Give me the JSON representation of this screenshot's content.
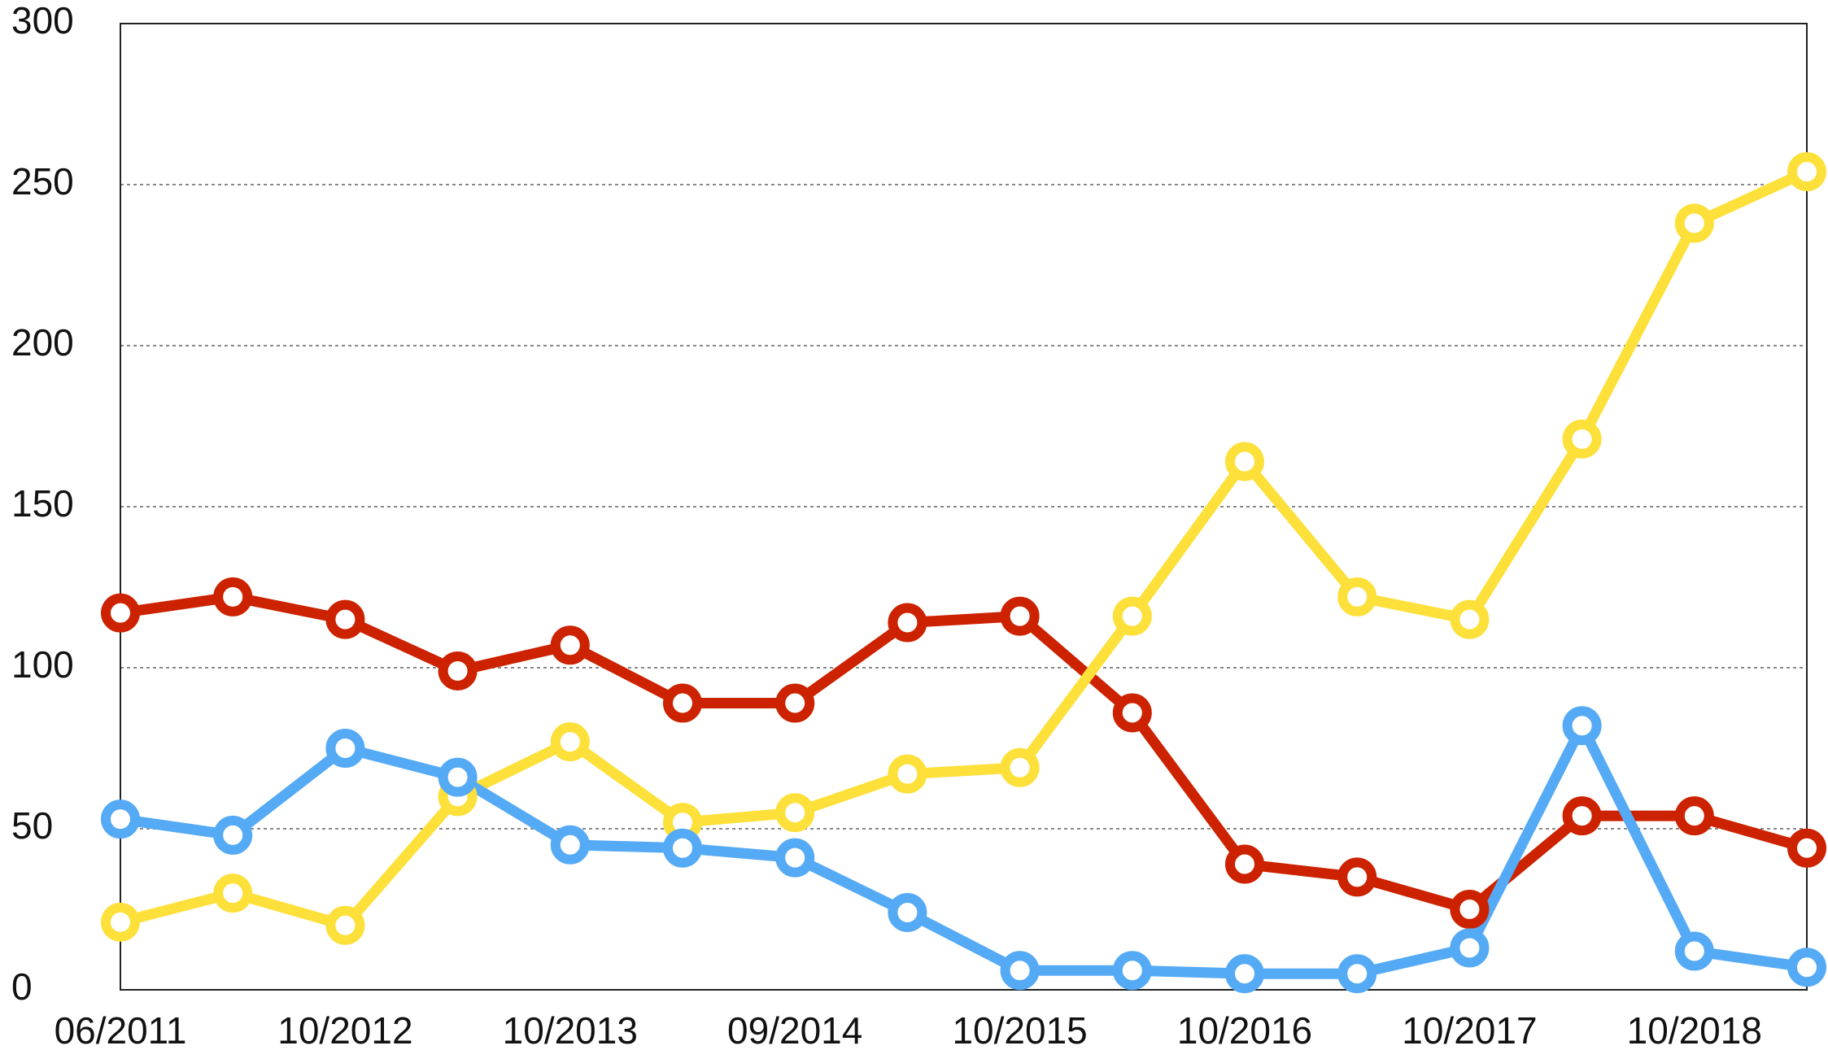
{
  "chart_data": {
    "type": "line",
    "categories": [
      "06/2011",
      null,
      "10/2012",
      null,
      "10/2013",
      null,
      "09/2014",
      null,
      "10/2015",
      null,
      "10/2016",
      null,
      "10/2017",
      null,
      "10/2018",
      null
    ],
    "series": [
      {
        "color": "#cc2200",
        "values": [
          117,
          122,
          115,
          99,
          107,
          89,
          89,
          114,
          116,
          86,
          39,
          35,
          25,
          54,
          54,
          44
        ]
      },
      {
        "color": "#fde03a",
        "values": [
          21,
          30,
          20,
          60,
          77,
          52,
          55,
          67,
          69,
          116,
          164,
          122,
          115,
          171,
          238,
          254
        ]
      },
      {
        "color": "#55aaf5",
        "values": [
          53,
          48,
          75,
          66,
          45,
          44,
          41,
          24,
          6,
          6,
          5,
          5,
          13,
          82,
          12,
          7
        ]
      }
    ],
    "ylim": [
      0,
      300
    ],
    "yticks": [
      0,
      50,
      100,
      150,
      200,
      250,
      300
    ],
    "grid": true
  }
}
